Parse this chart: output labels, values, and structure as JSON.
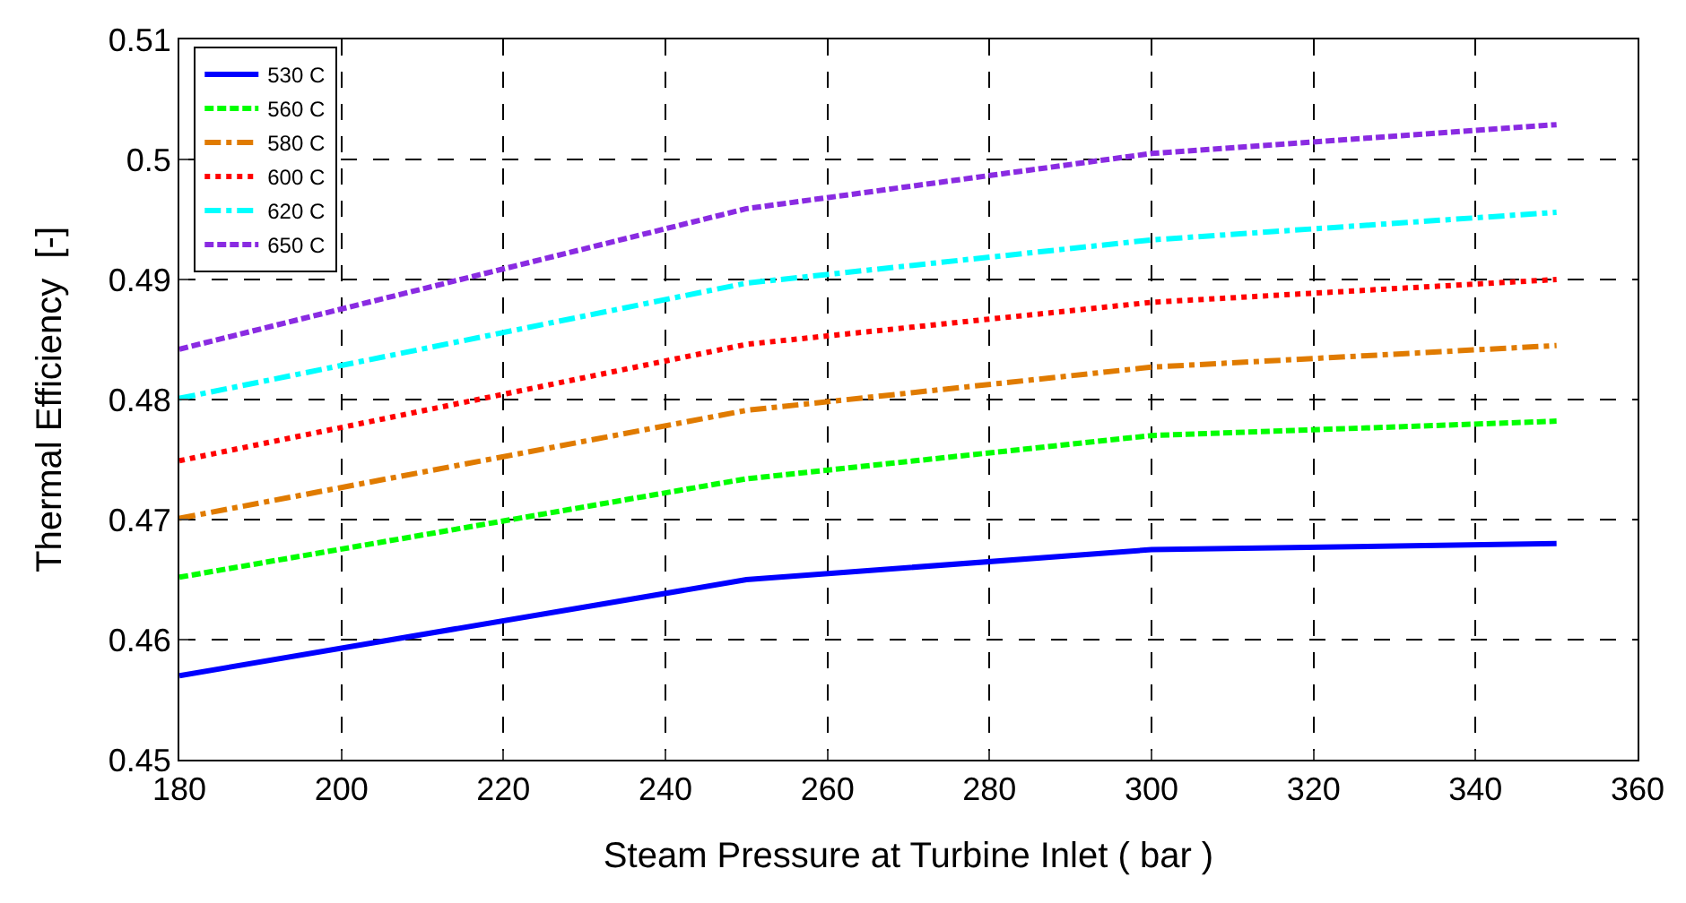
{
  "chart_data": {
    "type": "line",
    "xlabel": "Steam Pressure at Turbine Inlet ( bar )",
    "ylabel": "Thermal Efficiency  [-]",
    "x": [
      180,
      250,
      300,
      350
    ],
    "series": [
      {
        "name": "530 C",
        "color": "#0000ff",
        "line_style": "solid",
        "values": [
          0.457,
          0.465,
          0.4675,
          0.468
        ]
      },
      {
        "name": "560 C",
        "color": "#00ff00",
        "line_style": "dashed",
        "values": [
          0.4652,
          0.4734,
          0.477,
          0.4782
        ]
      },
      {
        "name": "580 C",
        "color": "#e07b00",
        "line_style": "dashdot",
        "values": [
          0.4701,
          0.4791,
          0.4827,
          0.4845
        ]
      },
      {
        "name": "600 C",
        "color": "#ff0000",
        "line_style": "dotted",
        "values": [
          0.4749,
          0.4846,
          0.4881,
          0.49
        ]
      },
      {
        "name": "620 C",
        "color": "#00ffff",
        "line_style": "dashdot",
        "values": [
          0.4801,
          0.4897,
          0.4933,
          0.4956
        ]
      },
      {
        "name": "650 C",
        "color": "#8a2be2",
        "line_style": "dashed",
        "values": [
          0.4842,
          0.4959,
          0.5005,
          0.5029
        ]
      }
    ],
    "xlim": [
      180,
      360
    ],
    "xticks": [
      180,
      200,
      220,
      240,
      260,
      280,
      300,
      320,
      340,
      360
    ],
    "ylim": [
      0.45,
      0.51
    ],
    "yticks": [
      0.45,
      0.46,
      0.47,
      0.48,
      0.49,
      0.5,
      0.51
    ],
    "grid": true,
    "legend": "top left"
  }
}
